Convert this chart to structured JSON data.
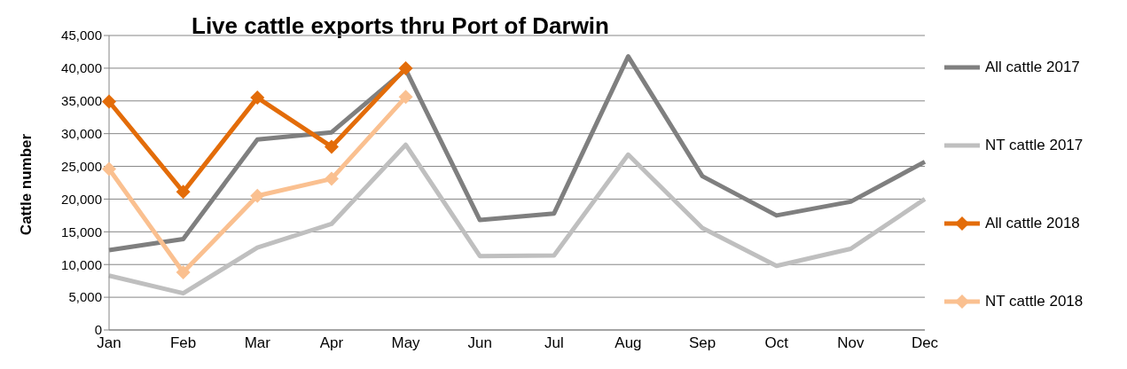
{
  "chart_data": {
    "type": "line",
    "title": "Live cattle exports thru Port of Darwin",
    "ylabel": "Cattle number",
    "categories": [
      "Jan",
      "Feb",
      "Mar",
      "Apr",
      "May",
      "Jun",
      "Jul",
      "Aug",
      "Sep",
      "Oct",
      "Nov",
      "Dec"
    ],
    "ylim": [
      0,
      45000
    ],
    "yticks": [
      0,
      {
        "value": 5000,
        "label": "5,000"
      },
      {
        "value": 10000,
        "label": "10,000"
      },
      {
        "value": 15000,
        "label": "15,000"
      },
      {
        "value": 20000,
        "label": "20,000"
      },
      {
        "value": 25000,
        "label": "25,000"
      },
      {
        "value": 30000,
        "label": "30,000"
      },
      {
        "value": 35000,
        "label": "35,000"
      },
      {
        "value": 40000,
        "label": "40,000"
      },
      {
        "value": 45000,
        "label": "45,000"
      }
    ],
    "grid": "y",
    "legend": "right",
    "series": [
      {
        "name": "All cattle 2017",
        "color": "#7f7f7f",
        "marker": "none",
        "values": [
          12200,
          13900,
          29100,
          30200,
          39800,
          16800,
          17800,
          41800,
          23500,
          17500,
          19600,
          25700
        ]
      },
      {
        "name": "NT cattle 2017",
        "color": "#bfbfbf",
        "marker": "none",
        "values": [
          8300,
          5600,
          12600,
          16200,
          28300,
          11300,
          11400,
          26800,
          15600,
          9800,
          12400,
          20000
        ]
      },
      {
        "name": "All cattle 2018",
        "color": "#e36c09",
        "marker": "diamond",
        "values": [
          34900,
          21100,
          35500,
          28000,
          40000,
          null,
          null,
          null,
          null,
          null,
          null,
          null
        ]
      },
      {
        "name": "NT cattle 2018",
        "color": "#fac090",
        "marker": "diamond",
        "values": [
          24600,
          8800,
          20500,
          23100,
          35600,
          null,
          null,
          null,
          null,
          null,
          null,
          null
        ]
      }
    ]
  }
}
